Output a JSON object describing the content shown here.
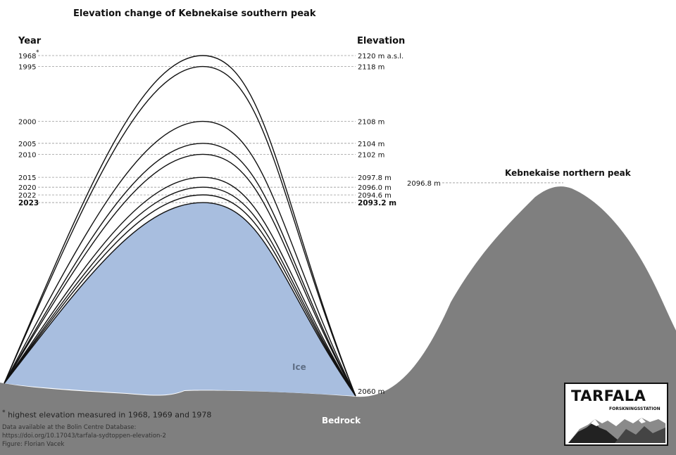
{
  "title": "Elevation change of Kebnekaise southern peak",
  "year_header": "Year",
  "elevation_header": "Elevation",
  "north_peak_label": "Kebnekaise northern peak",
  "ice_label": "Ice",
  "bedrock_label": "Bedrock",
  "footnote": "highest elevation measured in 1968, 1969 and 1978",
  "footnote_marker": "*",
  "data_source": "Data available at the Bolin Centre Database:",
  "doi": "https://doi.org/10.17043/tarfala-sydtoppen-elevation-2",
  "figure_credit": "Figure: Florian Vacek",
  "logo": {
    "name": "TARFALA",
    "subtitle": "FORSKNINGSSTATION"
  },
  "colors": {
    "ice": "#a8bedf",
    "bedrock": "#7f7f7f",
    "line": "#111111",
    "guide": "#9a9a9a"
  },
  "chart_data": {
    "type": "line",
    "title": "Elevation change of Kebnekaise southern peak",
    "xlabel": "Year",
    "ylabel": "Elevation",
    "base_elevation": 2060,
    "base_label": "2060 m",
    "series": [
      {
        "year": "1968",
        "elevation": 2120,
        "label": "2120 m a.s.l.",
        "marker": "*",
        "bold": false
      },
      {
        "year": "1995",
        "elevation": 2118,
        "label": "2118 m",
        "bold": false
      },
      {
        "year": "2000",
        "elevation": 2108,
        "label": "2108 m",
        "bold": false
      },
      {
        "year": "2005",
        "elevation": 2104,
        "label": "2104 m",
        "bold": false
      },
      {
        "year": "2010",
        "elevation": 2102,
        "label": "2102 m",
        "bold": false
      },
      {
        "year": "2015",
        "elevation": 2097.8,
        "label": "2097.8 m",
        "bold": false
      },
      {
        "year": "2020",
        "elevation": 2096.0,
        "label": "2096.0 m",
        "bold": false
      },
      {
        "year": "2022",
        "elevation": 2094.6,
        "label": "2094.6 m",
        "bold": false
      },
      {
        "year": "2023",
        "elevation": 2093.2,
        "label": "2093.2 m",
        "bold": true
      }
    ],
    "north_peak": {
      "elevation": 2096.8,
      "label": "2096.8 m"
    }
  }
}
